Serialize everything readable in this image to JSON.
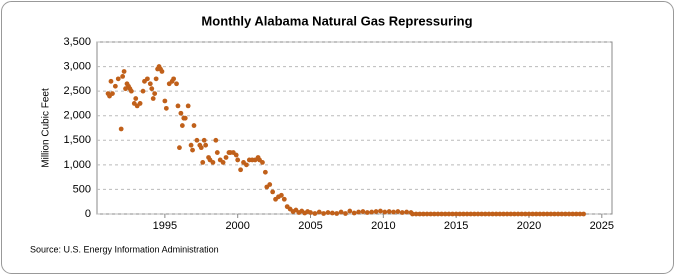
{
  "chart_data": {
    "type": "scatter",
    "title": "Monthly Alabama Natural Gas Repressuring",
    "y_label": "Million Cubic Feet",
    "source": "Source: U.S. Energy Information Administration",
    "color": "#c0601a",
    "grid": true,
    "xlim": [
      1990.34,
      2025.7
    ],
    "ylim": [
      0,
      3500
    ],
    "xticks": [
      1995,
      2000,
      2005,
      2010,
      2015,
      2020,
      2025
    ],
    "yticks": [
      0,
      {
        "value": 500,
        "label": "500"
      },
      {
        "value": 1000,
        "label": "1,000"
      },
      {
        "value": 1500,
        "label": "1,500"
      },
      {
        "value": 2000,
        "label": "2,000"
      },
      {
        "value": 2500,
        "label": "2,500"
      },
      {
        "value": 3000,
        "label": "3,000"
      },
      {
        "value": 3500,
        "label": "3,500"
      }
    ],
    "x": [
      1991.1,
      1991.2,
      1991.3,
      1991.4,
      1991.6,
      1991.8,
      1992.0,
      1992.1,
      1992.2,
      1992.3,
      1992.4,
      1992.5,
      1992.6,
      1992.7,
      1992.9,
      1993.0,
      1993.1,
      1993.3,
      1993.5,
      1993.6,
      1993.8,
      1994.0,
      1994.1,
      1994.2,
      1994.3,
      1994.4,
      1994.5,
      1994.6,
      1994.7,
      1994.8,
      1995.0,
      1995.1,
      1995.3,
      1995.5,
      1995.6,
      1995.8,
      1995.9,
      1996.0,
      1996.1,
      1996.2,
      1996.3,
      1996.4,
      1996.6,
      1996.8,
      1996.9,
      1997.0,
      1997.2,
      1997.4,
      1997.5,
      1997.6,
      1997.7,
      1997.8,
      1998.0,
      1998.1,
      1998.3,
      1998.5,
      1998.6,
      1998.8,
      1999.0,
      1999.2,
      1999.4,
      1999.5,
      1999.7,
      1999.9,
      2000.0,
      2000.2,
      2000.4,
      2000.6,
      2000.8,
      2001.0,
      2001.2,
      2001.4,
      2001.5,
      2001.7,
      2001.9,
      2002.0,
      2002.2,
      2002.4,
      2002.6,
      2002.8,
      2003.0,
      2003.2,
      2003.4,
      2003.6,
      2003.8,
      2004.0,
      2004.2,
      2004.4,
      2004.6,
      2004.8,
      2005.0,
      2005.3,
      2005.6,
      2005.9,
      2006.2,
      2006.5,
      2006.8,
      2007.1,
      2007.4,
      2007.7,
      2008.0,
      2008.3,
      2008.6,
      2008.9,
      2009.2,
      2009.5,
      2009.8,
      2010.1,
      2010.4,
      2010.7,
      2011.0,
      2011.3,
      2011.6,
      2011.9,
      2012.0,
      2012.25,
      2012.5,
      2012.75,
      2013.0,
      2013.25,
      2013.5,
      2013.75,
      2014.0,
      2014.25,
      2014.5,
      2014.75,
      2015.0,
      2015.25,
      2015.5,
      2015.75,
      2016.0,
      2016.25,
      2016.5,
      2016.75,
      2017.0,
      2017.25,
      2017.5,
      2017.75,
      2018.0,
      2018.25,
      2018.5,
      2018.75,
      2019.0,
      2019.25,
      2019.5,
      2019.75,
      2020.0,
      2020.25,
      2020.5,
      2020.75,
      2021.0,
      2021.25,
      2021.5,
      2021.75,
      2022.0,
      2022.25,
      2022.5,
      2022.75,
      2023.0,
      2023.25,
      2023.5,
      2023.75
    ],
    "values": [
      2450,
      2400,
      2700,
      2450,
      2600,
      2750,
      1730,
      2800,
      2900,
      2550,
      2650,
      2600,
      2550,
      2500,
      2250,
      2350,
      2200,
      2250,
      2500,
      2700,
      2750,
      2650,
      2550,
      2350,
      2450,
      2750,
      2950,
      3000,
      2950,
      2900,
      2300,
      2150,
      2650,
      2700,
      2750,
      2650,
      2200,
      1350,
      2050,
      1800,
      1950,
      1950,
      2200,
      1400,
      1300,
      1800,
      1500,
      1400,
      1350,
      1050,
      1500,
      1400,
      1150,
      1100,
      1050,
      1500,
      1250,
      1100,
      1050,
      1150,
      1250,
      1250,
      1250,
      1200,
      1100,
      900,
      1050,
      1000,
      1100,
      1100,
      1100,
      1150,
      1100,
      1050,
      850,
      550,
      600,
      450,
      300,
      350,
      380,
      300,
      150,
      100,
      50,
      80,
      30,
      60,
      20,
      50,
      30,
      10,
      40,
      10,
      30,
      20,
      10,
      40,
      10,
      60,
      20,
      40,
      50,
      30,
      40,
      50,
      60,
      40,
      50,
      40,
      50,
      30,
      40,
      30,
      0,
      0,
      0,
      0,
      0,
      0,
      0,
      0,
      0,
      0,
      0,
      0,
      0,
      0,
      0,
      0,
      0,
      0,
      0,
      0,
      0,
      0,
      0,
      0,
      0,
      0,
      0,
      0,
      0,
      0,
      0,
      0,
      0,
      0,
      0,
      0,
      0,
      0,
      0,
      0,
      0,
      0,
      0,
      0,
      0,
      0,
      0,
      0
    ]
  }
}
